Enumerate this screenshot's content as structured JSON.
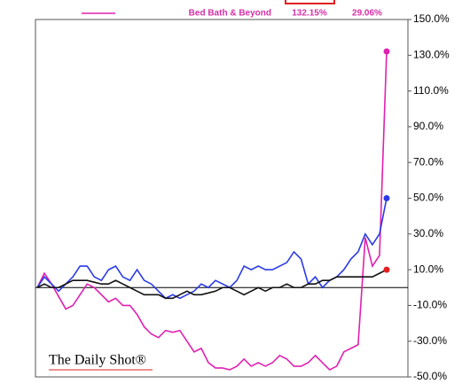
{
  "chart_data": {
    "type": "line",
    "legend": {
      "label": "Bed Bath & Beyond",
      "value": "132.15%",
      "change": "29.06%"
    },
    "brand": "The Daily Shot®",
    "categories": [
      null,
      null,
      null,
      null,
      null,
      null,
      null,
      null,
      null,
      null,
      null,
      null,
      null,
      null,
      null,
      null,
      null,
      null,
      null,
      null,
      null,
      null,
      null,
      null,
      null,
      null,
      null,
      null,
      null,
      null,
      null,
      null,
      null,
      null,
      null,
      null,
      null,
      null,
      null,
      null,
      null,
      null,
      null,
      null,
      null,
      null,
      null,
      null,
      null,
      null
    ],
    "series": [
      {
        "name": "Bed Bath & Beyond",
        "color": "#e020b0",
        "end_marker_color": "#e020b0",
        "values": [
          0,
          8,
          2,
          -5,
          -12,
          -10,
          -4,
          2,
          0,
          -4,
          -8,
          -6,
          -10,
          -10,
          -15,
          -22,
          -26,
          -28,
          -24,
          -25,
          -24,
          -30,
          -36,
          -34,
          -42,
          -45,
          -45,
          -46,
          -44,
          -40,
          -44,
          -42,
          -44,
          -42,
          -38,
          -40,
          -44,
          -44,
          -42,
          -38,
          -42,
          -46,
          -44,
          -36,
          -34,
          -32,
          28,
          12,
          18,
          132.15
        ]
      },
      {
        "color": "#2a3ae8",
        "end_marker_color": "#2a3ae8",
        "values": [
          0,
          6,
          2,
          -2,
          2,
          6,
          12,
          12,
          6,
          4,
          10,
          12,
          6,
          4,
          10,
          4,
          2,
          -2,
          -6,
          -4,
          -6,
          -4,
          -2,
          2,
          0,
          4,
          2,
          0,
          4,
          12,
          10,
          12,
          10,
          10,
          12,
          14,
          20,
          16,
          2,
          6,
          0,
          4,
          6,
          10,
          16,
          20,
          30,
          24,
          30,
          50
        ]
      },
      {
        "color": "#111111",
        "end_marker_color": "#e02020",
        "values": [
          0,
          2,
          0,
          0,
          2,
          4,
          4,
          4,
          3,
          2,
          2,
          4,
          2,
          0,
          -2,
          -4,
          -4,
          -4,
          -6,
          -6,
          -4,
          -2,
          -4,
          -4,
          -3,
          -2,
          0,
          0,
          -2,
          -4,
          -2,
          0,
          -2,
          0,
          0,
          2,
          0,
          0,
          2,
          2,
          4,
          4,
          6,
          6,
          6,
          6,
          6,
          6,
          8,
          10
        ]
      }
    ],
    "ylim": [
      -50,
      150
    ],
    "yticks": [
      {
        "value": 150,
        "label": "150.0%"
      },
      {
        "value": 130,
        "label": "130.0%"
      },
      {
        "value": 110,
        "label": "110.0%"
      },
      {
        "value": 90,
        "label": "90.0%"
      },
      {
        "value": 70,
        "label": "70.0%"
      },
      {
        "value": 50,
        "label": "50.0%"
      },
      {
        "value": 30,
        "label": "30.0%"
      },
      {
        "value": 10,
        "label": "10.0%"
      },
      {
        "value": -10,
        "label": "-10.0%"
      },
      {
        "value": -30,
        "label": "-30.0%"
      },
      {
        "value": -50,
        "label": "-50.0%"
      }
    ],
    "zero_line": true
  }
}
